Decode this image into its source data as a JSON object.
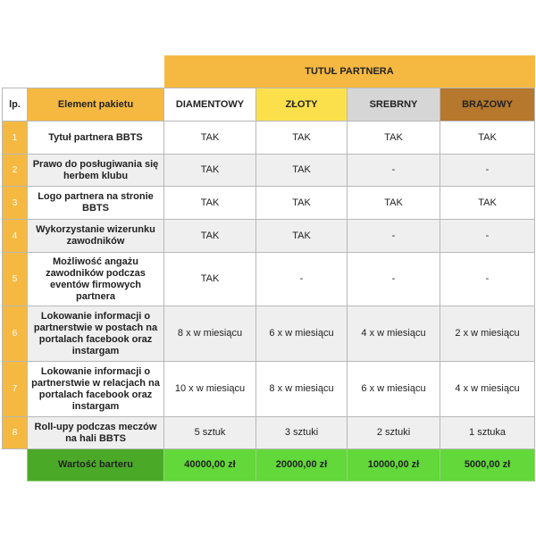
{
  "header": {
    "title": "TUTUŁ PARTNERA",
    "lp": "lp.",
    "element": "Element pakietu",
    "tiers": [
      "DIAMENTOWY",
      "ZŁOTY",
      "SREBRNY",
      "BRĄZOWY"
    ]
  },
  "colors": {
    "orange": "#f5b942",
    "gold": "#fbe04c",
    "silver": "#d6d6d6",
    "bronze": "#b5782c",
    "green": "#62d83a",
    "dark_green": "#4aaa28"
  },
  "rows": [
    {
      "n": "1",
      "label": "Tytuł partnera BBTS",
      "v": [
        "TAK",
        "TAK",
        "TAK",
        "TAK"
      ]
    },
    {
      "n": "2",
      "label": "Prawo do posługiwania się herbem klubu",
      "v": [
        "TAK",
        "TAK",
        "-",
        "-"
      ]
    },
    {
      "n": "3",
      "label": "Logo partnera na stronie BBTS",
      "v": [
        "TAK",
        "TAK",
        "TAK",
        "TAK"
      ]
    },
    {
      "n": "4",
      "label": "Wykorzystanie wizerunku zawodników",
      "v": [
        "TAK",
        "TAK",
        "-",
        "-"
      ]
    },
    {
      "n": "5",
      "label": "Możliwość angażu zawodników podczas eventów firmowych partnera",
      "v": [
        "TAK",
        "-",
        "-",
        "-"
      ]
    },
    {
      "n": "6",
      "label": "Lokowanie informacji o partnerstwie w postach na portalach facebook oraz instargam",
      "v": [
        "8 x w miesiącu",
        "6 x w miesiącu",
        "4 x w miesiącu",
        "2 x w miesiącu"
      ]
    },
    {
      "n": "7",
      "label": "Lokowanie informacji o partnerstwie w relacjach na portalach facebook oraz instargam",
      "v": [
        "10 x w miesiącu",
        "8 x w miesiącu",
        "6 x w miesiącu",
        "4 x w miesiącu"
      ]
    },
    {
      "n": "8",
      "label": "Roll-upy podczas meczów na hali BBTS",
      "v": [
        "5 sztuk",
        "3 sztuki",
        "2 sztuki",
        "1 sztuka"
      ]
    }
  ],
  "total": {
    "label": "Wartość barteru",
    "v": [
      "40000,00 zł",
      "20000,00 zł",
      "10000,00 zł",
      "5000,00 zł"
    ]
  }
}
